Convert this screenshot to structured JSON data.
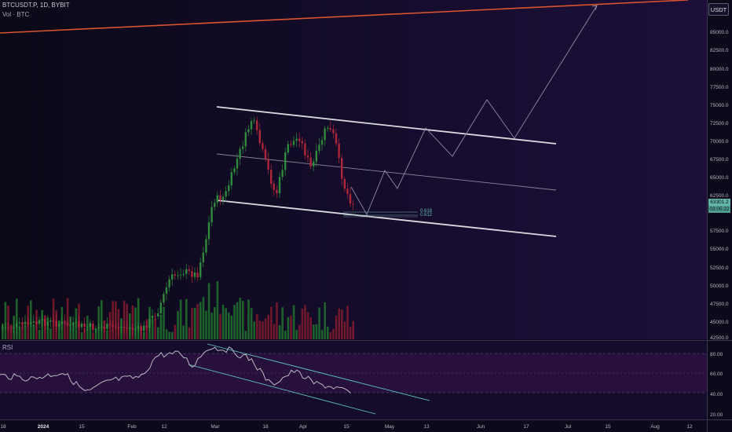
{
  "header": {
    "symbol_line": "BTCUSDT.P, 1D, BYBIT",
    "volume_line": "Vol · BTC",
    "currency": "USDT"
  },
  "price_axis": {
    "ticks": [
      "85000.0",
      "82500.0",
      "80000.0",
      "77500.0",
      "75000.0",
      "72500.0",
      "70000.0",
      "67500.0",
      "65000.0",
      "62500.0",
      "57500.0",
      "55000.0",
      "52500.0",
      "50000.0",
      "47500.0",
      "45000.0",
      "42500.0"
    ],
    "last_price_tag": "63301.2",
    "countdown_tag": "03:05:22"
  },
  "fib_labels": [
    "0.618",
    "0.612"
  ],
  "rsi": {
    "label": "RSI",
    "ticks": [
      "80.00",
      "60.00",
      "40.00",
      "20.00"
    ]
  },
  "time_axis": {
    "labels": [
      "18",
      "2024",
      "15",
      "Feb",
      "12",
      "Mar",
      "18",
      "Apr",
      "15",
      "May",
      "13",
      "Jun",
      "17",
      "Jul",
      "15",
      "Aug",
      "12"
    ]
  },
  "colors": {
    "background": "#0c0a1a",
    "candle_up": "#2f8a3c",
    "candle_down": "#b0263a",
    "channel_lines": "#d9d9e0",
    "trendline": "#d8532f",
    "rsi_line": "#b9b9c3",
    "rsi_channel": "#5fc6c4",
    "rsi_band": "#2a1340"
  }
}
